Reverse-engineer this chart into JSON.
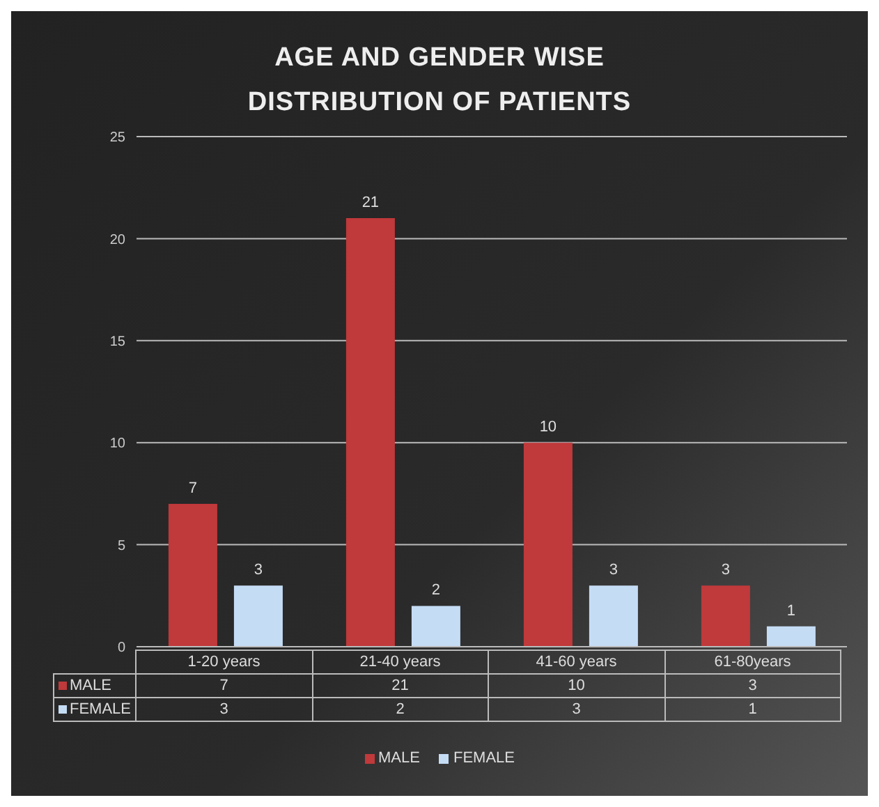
{
  "chart_data": [
    {
      "type": "bar",
      "title": "AGE AND GENDER WISE DISTRIBUTION OF PATIENTS",
      "categories": [
        null,
        null,
        null,
        null
      ],
      "series": [
        {
          "name": "MALE",
          "color": "#c0393b",
          "values": [
            7,
            21,
            10,
            3
          ],
          "value_labels": [
            "7",
            "21",
            "10",
            "3"
          ]
        },
        {
          "name": "FEMALE",
          "color": "#c5dcf5",
          "values": [
            3,
            2,
            3,
            1
          ],
          "value_labels": [
            "3",
            "2",
            "3",
            "1"
          ]
        }
      ],
      "ylim": [
        0,
        25
      ],
      "yticks": [
        0,
        5,
        10,
        15,
        20,
        25
      ],
      "grid": "y",
      "legend": "bottom",
      "tick_labels": "y"
    },
    {
      "type": "other",
      "categories": [
        "1-20 years",
        "21-40 years",
        "41-60 years",
        "61-80years"
      ],
      "series": [
        {
          "name": "MALE",
          "color": "#c0393b",
          "values": [
            7,
            21,
            10,
            3
          ]
        },
        {
          "name": "FEMALE",
          "color": "#c5dcf5",
          "values": [
            3,
            2,
            3,
            1
          ]
        }
      ],
      "data_labels": true
    }
  ]
}
